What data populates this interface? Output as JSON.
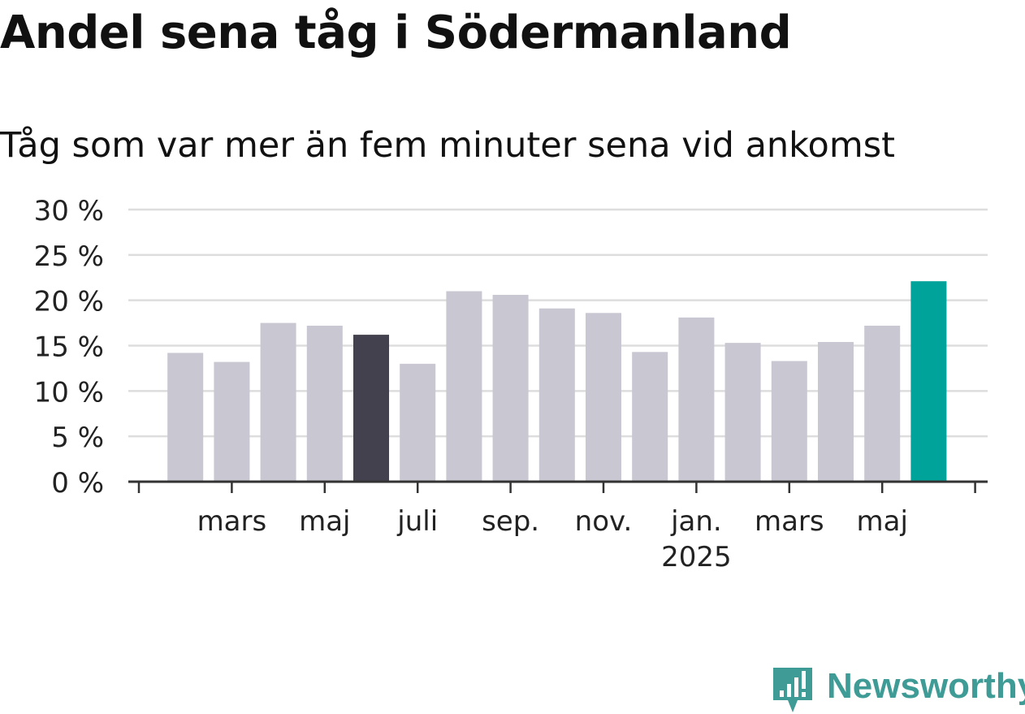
{
  "header": {
    "title": "Andel sena tåg i Södermanland",
    "subtitle": "Tåg som var mer än fem minuter sena vid ankomst"
  },
  "brand": {
    "name": "Newsworthy",
    "color": "#3f9b95"
  },
  "colors": {
    "bar_default": "#c8c7d2",
    "bar_highlight_past": "#43414d",
    "bar_latest": "#00a399",
    "gridline": "#dddddd",
    "axis": "#333333",
    "text": "#222222"
  },
  "chart_data": {
    "type": "bar",
    "title": "Andel sena tåg i Södermanland",
    "subtitle": "Tåg som var mer än fem minuter sena vid ankomst",
    "xlabel": "",
    "ylabel": "",
    "categories": [
      "2024-02",
      "2024-03",
      "2024-04",
      "2024-05",
      "2024-06",
      "2024-07",
      "2024-08",
      "2024-09",
      "2024-10",
      "2024-11",
      "2024-12",
      "2025-01",
      "2025-02",
      "2025-03",
      "2025-04",
      "2025-05",
      "2025-06"
    ],
    "values": [
      14.2,
      13.2,
      17.5,
      17.2,
      16.2,
      13.0,
      21.0,
      20.6,
      19.1,
      18.6,
      14.3,
      18.1,
      15.3,
      13.3,
      15.4,
      17.2,
      22.1
    ],
    "highlight": {
      "2024-06": "previous_year",
      "2025-06": "latest"
    },
    "ylim": [
      0,
      30
    ],
    "yticks": [
      0,
      5,
      10,
      15,
      20,
      25,
      30
    ],
    "ytick_labels": [
      "0 %",
      "5 %",
      "10 %",
      "15 %",
      "20 %",
      "25 %",
      "30 %"
    ],
    "xtick_labels": [
      {
        "label": "mars",
        "sublabel": ""
      },
      {
        "label": "maj",
        "sublabel": ""
      },
      {
        "label": "juli",
        "sublabel": ""
      },
      {
        "label": "sep.",
        "sublabel": ""
      },
      {
        "label": "nov.",
        "sublabel": ""
      },
      {
        "label": "jan.",
        "sublabel": "2025"
      },
      {
        "label": "mars",
        "sublabel": ""
      },
      {
        "label": "maj",
        "sublabel": ""
      }
    ],
    "grid": true,
    "legend": "none"
  }
}
